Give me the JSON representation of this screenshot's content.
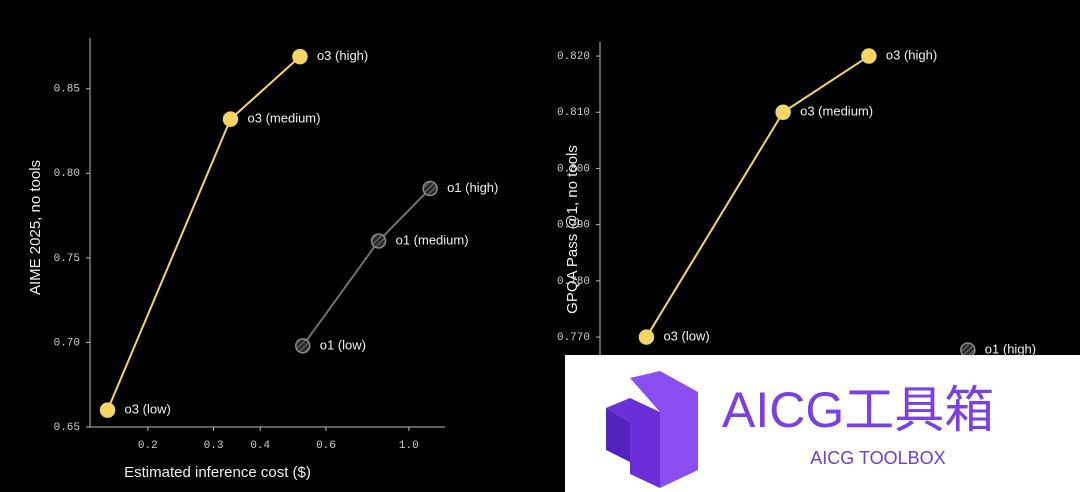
{
  "chart_data": [
    {
      "type": "line",
      "x_scale": "log",
      "xlabel": "Estimated inference cost ($)",
      "ylabel": "AIME 2025, no tools",
      "xlim": [
        0.14,
        1.25
      ],
      "xticks": [
        0.2,
        0.3,
        0.4,
        0.6,
        {
          "value": 1.0,
          "label": "1.0"
        }
      ],
      "ylim": [
        0.65,
        0.88
      ],
      "yticks": [
        0.65,
        {
          "value": 0.7,
          "label": "0.70"
        },
        0.75,
        {
          "value": 0.8,
          "label": "0.80"
        },
        0.85
      ],
      "series": [
        {
          "color": "#f5d565",
          "marker_style": "filled",
          "x": [
            0.156,
            0.333,
            0.511
          ],
          "values": [
            0.66,
            0.832,
            0.869
          ],
          "labels": [
            "o3 (low)",
            "o3 (medium)",
            "o3 (high)"
          ]
        },
        {
          "color": "#707070",
          "marker_style": "hatched",
          "x": [
            0.52,
            0.83,
            1.14
          ],
          "values": [
            0.698,
            0.76,
            0.791
          ],
          "labels": [
            "o1 (low)",
            "o1 (medium)",
            "o1 (high)"
          ]
        }
      ]
    },
    {
      "type": "line",
      "x_scale": "log",
      "ylabel": "GPQA Pass @1, no tools",
      "xlim": [
        0.12,
        2.0
      ],
      "ylim": [
        0.754,
        0.8225
      ],
      "yticks": [
        {
          "value": 0.77,
          "label": "0.770"
        },
        {
          "value": 0.78,
          "label": "0.780"
        },
        {
          "value": 0.79,
          "label": "0.790"
        },
        {
          "value": 0.8,
          "label": "0.800"
        },
        {
          "value": 0.81,
          "label": "0.810"
        },
        {
          "value": 0.82,
          "label": "0.820"
        }
      ],
      "series": [
        {
          "color": "#f5d565",
          "marker_style": "filled",
          "x": [
            0.158,
            0.355,
            0.59
          ],
          "values": [
            0.77,
            0.81,
            0.82
          ],
          "labels": [
            "o3 (low)",
            "o3 (medium)",
            "o3 (high)"
          ]
        },
        {
          "color": "#707070",
          "marker_style": "hatched",
          "x": [
            1.06
          ],
          "values": [
            0.7677
          ],
          "labels": [
            "o1 (high)"
          ]
        }
      ]
    }
  ],
  "watermark": {
    "title": "AICG工具箱",
    "subtitle": "AICG TOOLBOX"
  }
}
